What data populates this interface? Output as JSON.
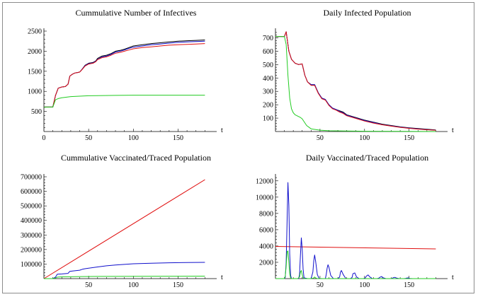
{
  "chart_data": [
    {
      "type": "line",
      "title": "Cummulative Number of Infectives",
      "xlabel": "t",
      "ylabel": "",
      "xlim": [
        0,
        190
      ],
      "ylim": [
        0,
        2500
      ],
      "x_ticks": [
        0,
        50,
        100,
        150
      ],
      "y_ticks": [
        500,
        1000,
        1500,
        2000,
        2500
      ],
      "series": [
        {
          "name": "black",
          "color": "#000000",
          "x": [
            0,
            10,
            13,
            16,
            20,
            24,
            27,
            29,
            32,
            35,
            38,
            40,
            43,
            46,
            50,
            55,
            58,
            60,
            65,
            70,
            75,
            80,
            85,
            90,
            95,
            100,
            110,
            120,
            130,
            140,
            150,
            160,
            170,
            180
          ],
          "y": [
            610,
            610,
            900,
            1080,
            1110,
            1120,
            1180,
            1380,
            1430,
            1460,
            1470,
            1480,
            1560,
            1650,
            1700,
            1720,
            1760,
            1820,
            1880,
            1900,
            1940,
            2000,
            2020,
            2050,
            2090,
            2130,
            2160,
            2190,
            2210,
            2230,
            2250,
            2260,
            2270,
            2280
          ]
        },
        {
          "name": "blue",
          "color": "#1010cc",
          "x": [
            0,
            10,
            13,
            16,
            20,
            24,
            27,
            29,
            32,
            35,
            38,
            40,
            43,
            46,
            50,
            55,
            58,
            60,
            65,
            70,
            75,
            80,
            85,
            90,
            95,
            100,
            110,
            120,
            130,
            140,
            150,
            160,
            170,
            180
          ],
          "y": [
            610,
            610,
            900,
            1080,
            1110,
            1120,
            1180,
            1380,
            1430,
            1460,
            1470,
            1480,
            1560,
            1640,
            1690,
            1710,
            1750,
            1800,
            1860,
            1880,
            1920,
            1980,
            2000,
            2030,
            2070,
            2100,
            2130,
            2160,
            2180,
            2200,
            2220,
            2230,
            2240,
            2250
          ]
        },
        {
          "name": "red",
          "color": "#e01010",
          "x": [
            0,
            10,
            13,
            16,
            20,
            24,
            27,
            29,
            32,
            35,
            38,
            40,
            43,
            46,
            50,
            55,
            58,
            60,
            65,
            70,
            75,
            80,
            85,
            90,
            95,
            100,
            110,
            120,
            130,
            140,
            150,
            160,
            170,
            180
          ],
          "y": [
            610,
            610,
            900,
            1080,
            1110,
            1120,
            1180,
            1380,
            1430,
            1460,
            1470,
            1480,
            1550,
            1630,
            1680,
            1700,
            1740,
            1790,
            1840,
            1860,
            1900,
            1950,
            1970,
            2000,
            2030,
            2060,
            2090,
            2110,
            2130,
            2150,
            2160,
            2170,
            2180,
            2190
          ]
        },
        {
          "name": "green",
          "color": "#22cc22",
          "x": [
            0,
            10,
            13,
            16,
            20,
            30,
            40,
            50,
            60,
            80,
            100,
            120,
            140,
            160,
            180
          ],
          "y": [
            610,
            610,
            790,
            820,
            840,
            870,
            880,
            890,
            895,
            900,
            905,
            905,
            905,
            905,
            905
          ]
        }
      ]
    },
    {
      "type": "line",
      "title": "Daily Infected Population",
      "xlabel": "t",
      "ylabel": "",
      "xlim": [
        0,
        190
      ],
      "ylim": [
        0,
        750
      ],
      "x_ticks": [
        50,
        100,
        150
      ],
      "y_ticks": [
        100,
        200,
        300,
        400,
        500,
        600,
        700
      ],
      "series": [
        {
          "name": "black",
          "color": "#000000",
          "x": [
            0,
            10,
            12,
            15,
            18,
            22,
            26,
            30,
            33,
            36,
            40,
            44,
            48,
            52,
            56,
            60,
            64,
            68,
            72,
            76,
            80,
            90,
            100,
            110,
            120,
            130,
            140,
            150,
            160,
            170,
            180
          ],
          "y": [
            710,
            710,
            745,
            600,
            540,
            510,
            500,
            505,
            420,
            370,
            350,
            350,
            290,
            250,
            240,
            200,
            175,
            165,
            155,
            145,
            125,
            105,
            85,
            70,
            55,
            45,
            35,
            28,
            22,
            17,
            12
          ]
        },
        {
          "name": "blue",
          "color": "#1010cc",
          "x": [
            0,
            10,
            12,
            15,
            18,
            22,
            26,
            30,
            33,
            36,
            40,
            44,
            48,
            52,
            56,
            60,
            64,
            68,
            72,
            76,
            80,
            90,
            100,
            110,
            120,
            130,
            140,
            150,
            160,
            170,
            180
          ],
          "y": [
            710,
            710,
            745,
            600,
            540,
            510,
            500,
            505,
            420,
            370,
            350,
            350,
            290,
            250,
            240,
            200,
            175,
            165,
            150,
            140,
            122,
            102,
            82,
            67,
            52,
            42,
            33,
            26,
            20,
            15,
            10
          ]
        },
        {
          "name": "red",
          "color": "#e01010",
          "x": [
            0,
            10,
            12,
            15,
            18,
            22,
            26,
            30,
            33,
            36,
            40,
            44,
            48,
            52,
            56,
            60,
            64,
            68,
            72,
            76,
            80,
            90,
            100,
            110,
            120,
            130,
            140,
            150,
            160,
            170,
            180
          ],
          "y": [
            710,
            710,
            745,
            600,
            540,
            510,
            500,
            505,
            420,
            370,
            345,
            345,
            285,
            245,
            235,
            195,
            170,
            160,
            145,
            135,
            118,
            98,
            78,
            63,
            50,
            40,
            31,
            24,
            18,
            13,
            9
          ]
        },
        {
          "name": "green",
          "color": "#22cc22",
          "x": [
            0,
            10,
            12,
            14,
            16,
            18,
            20,
            22,
            25,
            28,
            30,
            35,
            40,
            50,
            60,
            80,
            100,
            140,
            180
          ],
          "y": [
            710,
            710,
            650,
            420,
            250,
            170,
            140,
            125,
            115,
            105,
            95,
            45,
            20,
            10,
            6,
            4,
            2,
            1,
            0
          ]
        }
      ]
    },
    {
      "type": "line",
      "title": "Cummulative Vaccinated/Traced Population",
      "xlabel": "t",
      "ylabel": "",
      "xlim": [
        0,
        190
      ],
      "ylim": [
        0,
        700000
      ],
      "x_ticks": [
        50,
        100,
        150
      ],
      "y_ticks": [
        100000,
        200000,
        300000,
        400000,
        500000,
        600000,
        700000
      ],
      "series": [
        {
          "name": "red",
          "color": "#e01010",
          "x": [
            0,
            180
          ],
          "y": [
            0,
            680000
          ]
        },
        {
          "name": "blue",
          "color": "#1010cc",
          "x": [
            0,
            10,
            13,
            15,
            20,
            27,
            29,
            32,
            40,
            43,
            46,
            50,
            60,
            70,
            80,
            100,
            120,
            140,
            160,
            180
          ],
          "y": [
            0,
            0,
            10000,
            30000,
            32000,
            36000,
            50000,
            52000,
            58000,
            64000,
            68000,
            72000,
            80000,
            88000,
            94000,
            102000,
            106000,
            109000,
            111000,
            112000
          ]
        },
        {
          "name": "green",
          "color": "#22cc22",
          "x": [
            0,
            10,
            13,
            15,
            20,
            40,
            60,
            100,
            140,
            180
          ],
          "y": [
            0,
            0,
            4000,
            10000,
            12000,
            14000,
            15000,
            16000,
            16500,
            17000
          ]
        }
      ]
    },
    {
      "type": "line",
      "title": "Daily Vaccinated/Traced Population",
      "xlabel": "t",
      "ylabel": "",
      "xlim": [
        0,
        190
      ],
      "ylim": [
        0,
        12500
      ],
      "x_ticks": [
        50,
        100,
        150
      ],
      "y_ticks": [
        2000,
        4000,
        6000,
        8000,
        10000,
        12000
      ],
      "series": [
        {
          "name": "red",
          "color": "#e01010",
          "x": [
            0,
            180
          ],
          "y": [
            3950,
            3650
          ]
        },
        {
          "name": "blue",
          "color": "#1010cc",
          "x": [
            0,
            10,
            11,
            12,
            13,
            14,
            15,
            16,
            17,
            18,
            22,
            26,
            27,
            28,
            29,
            30,
            31,
            32,
            36,
            40,
            42,
            43,
            44,
            45,
            47,
            49,
            53,
            56,
            57,
            58,
            59,
            60,
            62,
            65,
            70,
            72,
            73,
            74,
            76,
            79,
            84,
            86,
            87,
            89,
            91,
            94,
            99,
            101,
            102,
            104,
            106,
            109,
            114,
            116,
            117,
            119,
            121,
            124,
            129,
            131,
            132,
            134,
            136,
            139,
            144,
            146,
            147,
            149,
            151,
            154,
            160,
            170,
            180
          ],
          "y": [
            0,
            0,
            150,
            2000,
            7000,
            11800,
            9000,
            3000,
            400,
            0,
            0,
            0,
            500,
            2800,
            5000,
            3700,
            1200,
            100,
            0,
            0,
            800,
            2200,
            2900,
            2200,
            500,
            20,
            0,
            0,
            500,
            1300,
            1700,
            1400,
            400,
            10,
            0,
            200,
            800,
            1000,
            500,
            10,
            0,
            150,
            600,
            700,
            200,
            0,
            0,
            100,
            300,
            450,
            200,
            0,
            0,
            50,
            150,
            250,
            100,
            0,
            0,
            30,
            100,
            160,
            60,
            0,
            0,
            20,
            60,
            90,
            30,
            0,
            0,
            0,
            0
          ]
        },
        {
          "name": "green",
          "color": "#22cc22",
          "x": [
            0,
            10,
            11,
            12,
            13,
            14,
            15,
            16,
            17,
            18,
            25,
            27,
            28,
            29,
            30,
            31,
            32,
            40,
            43,
            44,
            45,
            47,
            50,
            180
          ],
          "y": [
            0,
            0,
            300,
            1500,
            3300,
            3400,
            2000,
            600,
            50,
            0,
            0,
            200,
            800,
            1000,
            500,
            100,
            0,
            0,
            80,
            200,
            90,
            0,
            0,
            0
          ]
        }
      ]
    }
  ]
}
